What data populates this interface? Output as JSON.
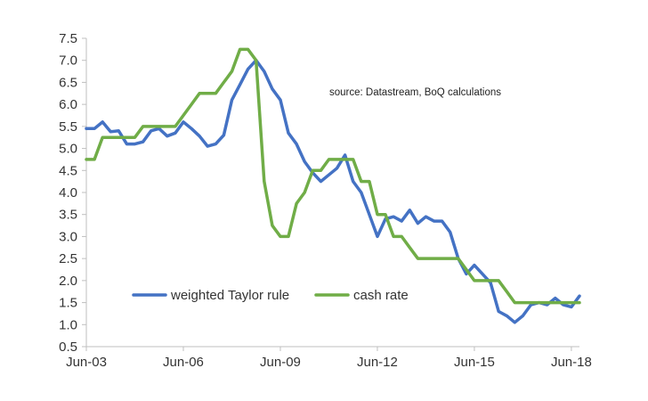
{
  "chart_data": {
    "type": "line",
    "annotation": "source:  Datastream, BoQ calculations",
    "x_ticks": [
      "Jun-03",
      "Jun-06",
      "Jun-09",
      "Jun-12",
      "Jun-15",
      "Jun-18"
    ],
    "y_ticks": [
      "7.5",
      "7.0",
      "6.5",
      "6.0",
      "5.5",
      "5.0",
      "4.5",
      "4.0",
      "3.5",
      "3.0",
      "2.5",
      "2.0",
      "1.5",
      "1.0",
      "0.5"
    ],
    "ylim": [
      0.5,
      7.5
    ],
    "xlim": [
      "2003-06",
      "2018-09"
    ],
    "grid": false,
    "legend_position": "bottom-left",
    "series": [
      {
        "name": "weighted Taylor rule",
        "color": "#4472C4",
        "points": [
          [
            "2003-06",
            5.45
          ],
          [
            "2003-09",
            5.45
          ],
          [
            "2003-12",
            5.6
          ],
          [
            "2004-03",
            5.38
          ],
          [
            "2004-06",
            5.4
          ],
          [
            "2004-09",
            5.1
          ],
          [
            "2004-12",
            5.1
          ],
          [
            "2005-03",
            5.15
          ],
          [
            "2005-06",
            5.4
          ],
          [
            "2005-09",
            5.45
          ],
          [
            "2005-12",
            5.28
          ],
          [
            "2006-03",
            5.35
          ],
          [
            "2006-06",
            5.6
          ],
          [
            "2006-09",
            5.45
          ],
          [
            "2006-12",
            5.28
          ],
          [
            "2007-03",
            5.05
          ],
          [
            "2007-06",
            5.1
          ],
          [
            "2007-09",
            5.3
          ],
          [
            "2007-12",
            6.1
          ],
          [
            "2008-03",
            6.45
          ],
          [
            "2008-06",
            6.8
          ],
          [
            "2008-09",
            7.0
          ],
          [
            "2008-12",
            6.75
          ],
          [
            "2009-03",
            6.35
          ],
          [
            "2009-06",
            6.1
          ],
          [
            "2009-09",
            5.35
          ],
          [
            "2009-12",
            5.1
          ],
          [
            "2010-03",
            4.7
          ],
          [
            "2010-06",
            4.45
          ],
          [
            "2010-09",
            4.25
          ],
          [
            "2010-12",
            4.4
          ],
          [
            "2011-03",
            4.55
          ],
          [
            "2011-06",
            4.85
          ],
          [
            "2011-09",
            4.25
          ],
          [
            "2011-12",
            4.0
          ],
          [
            "2012-03",
            3.5
          ],
          [
            "2012-06",
            3.0
          ],
          [
            "2012-09",
            3.4
          ],
          [
            "2012-12",
            3.45
          ],
          [
            "2013-03",
            3.35
          ],
          [
            "2013-06",
            3.6
          ],
          [
            "2013-09",
            3.3
          ],
          [
            "2013-12",
            3.45
          ],
          [
            "2014-03",
            3.35
          ],
          [
            "2014-06",
            3.35
          ],
          [
            "2014-09",
            3.1
          ],
          [
            "2014-12",
            2.5
          ],
          [
            "2015-03",
            2.15
          ],
          [
            "2015-06",
            2.35
          ],
          [
            "2015-09",
            2.15
          ],
          [
            "2015-12",
            1.95
          ],
          [
            "2016-03",
            1.3
          ],
          [
            "2016-06",
            1.2
          ],
          [
            "2016-09",
            1.05
          ],
          [
            "2016-12",
            1.2
          ],
          [
            "2017-03",
            1.45
          ],
          [
            "2017-06",
            1.5
          ],
          [
            "2017-09",
            1.45
          ],
          [
            "2017-12",
            1.6
          ],
          [
            "2018-03",
            1.45
          ],
          [
            "2018-06",
            1.4
          ],
          [
            "2018-09",
            1.65
          ]
        ]
      },
      {
        "name": "cash rate",
        "color": "#70AD47",
        "points": [
          [
            "2003-06",
            4.75
          ],
          [
            "2003-09",
            4.75
          ],
          [
            "2003-12",
            5.25
          ],
          [
            "2004-03",
            5.25
          ],
          [
            "2004-06",
            5.25
          ],
          [
            "2004-09",
            5.25
          ],
          [
            "2004-12",
            5.25
          ],
          [
            "2005-03",
            5.5
          ],
          [
            "2005-06",
            5.5
          ],
          [
            "2005-09",
            5.5
          ],
          [
            "2005-12",
            5.5
          ],
          [
            "2006-03",
            5.5
          ],
          [
            "2006-06",
            5.75
          ],
          [
            "2006-09",
            6.0
          ],
          [
            "2006-12",
            6.25
          ],
          [
            "2007-03",
            6.25
          ],
          [
            "2007-06",
            6.25
          ],
          [
            "2007-09",
            6.5
          ],
          [
            "2007-12",
            6.75
          ],
          [
            "2008-03",
            7.25
          ],
          [
            "2008-06",
            7.25
          ],
          [
            "2008-09",
            7.0
          ],
          [
            "2008-12",
            4.25
          ],
          [
            "2009-03",
            3.25
          ],
          [
            "2009-06",
            3.0
          ],
          [
            "2009-09",
            3.0
          ],
          [
            "2009-12",
            3.75
          ],
          [
            "2010-03",
            4.0
          ],
          [
            "2010-06",
            4.5
          ],
          [
            "2010-09",
            4.5
          ],
          [
            "2010-12",
            4.75
          ],
          [
            "2011-03",
            4.75
          ],
          [
            "2011-06",
            4.75
          ],
          [
            "2011-09",
            4.75
          ],
          [
            "2011-12",
            4.25
          ],
          [
            "2012-03",
            4.25
          ],
          [
            "2012-06",
            3.5
          ],
          [
            "2012-09",
            3.5
          ],
          [
            "2012-12",
            3.0
          ],
          [
            "2013-03",
            3.0
          ],
          [
            "2013-06",
            2.75
          ],
          [
            "2013-09",
            2.5
          ],
          [
            "2013-12",
            2.5
          ],
          [
            "2014-03",
            2.5
          ],
          [
            "2014-06",
            2.5
          ],
          [
            "2014-09",
            2.5
          ],
          [
            "2014-12",
            2.5
          ],
          [
            "2015-03",
            2.25
          ],
          [
            "2015-06",
            2.0
          ],
          [
            "2015-09",
            2.0
          ],
          [
            "2015-12",
            2.0
          ],
          [
            "2016-03",
            2.0
          ],
          [
            "2016-06",
            1.75
          ],
          [
            "2016-09",
            1.5
          ],
          [
            "2016-12",
            1.5
          ],
          [
            "2017-03",
            1.5
          ],
          [
            "2017-06",
            1.5
          ],
          [
            "2017-09",
            1.5
          ],
          [
            "2017-12",
            1.5
          ],
          [
            "2018-03",
            1.5
          ],
          [
            "2018-06",
            1.5
          ],
          [
            "2018-09",
            1.5
          ]
        ]
      }
    ]
  }
}
